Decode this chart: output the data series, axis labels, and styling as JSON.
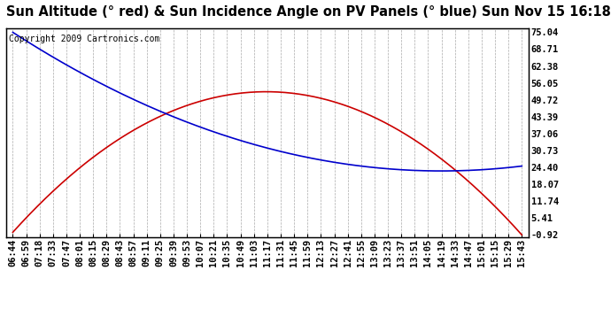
{
  "title": "Sun Altitude (° red) & Sun Incidence Angle on PV Panels (° blue) Sun Nov 15 16:18",
  "copyright": "Copyright 2009 Cartronics.com",
  "yticks": [
    75.04,
    68.71,
    62.38,
    56.05,
    49.72,
    43.39,
    37.06,
    30.73,
    24.4,
    18.07,
    11.74,
    5.41,
    -0.92
  ],
  "ymin": -0.92,
  "ymax": 75.04,
  "x_labels": [
    "06:44",
    "06:59",
    "07:18",
    "07:33",
    "07:47",
    "08:01",
    "08:15",
    "08:29",
    "08:43",
    "08:57",
    "09:11",
    "09:25",
    "09:39",
    "09:53",
    "10:07",
    "10:21",
    "10:35",
    "10:49",
    "11:03",
    "11:17",
    "11:31",
    "11:45",
    "11:59",
    "12:13",
    "12:27",
    "12:41",
    "12:55",
    "13:09",
    "13:23",
    "13:37",
    "13:51",
    "14:05",
    "14:19",
    "14:33",
    "14:47",
    "15:01",
    "15:15",
    "15:29",
    "15:43"
  ],
  "background_color": "#ffffff",
  "plot_bg_color": "#ffffff",
  "grid_color": "#aaaaaa",
  "red_color": "#cc0000",
  "blue_color": "#0000cc",
  "title_fontsize": 10.5,
  "tick_fontsize": 7.5,
  "copyright_fontsize": 7,
  "alt_a": -0.14739,
  "alt_b": 5.575,
  "alt_c": 0.0,
  "inc_min": 23.0,
  "inc_mid": 32.0
}
